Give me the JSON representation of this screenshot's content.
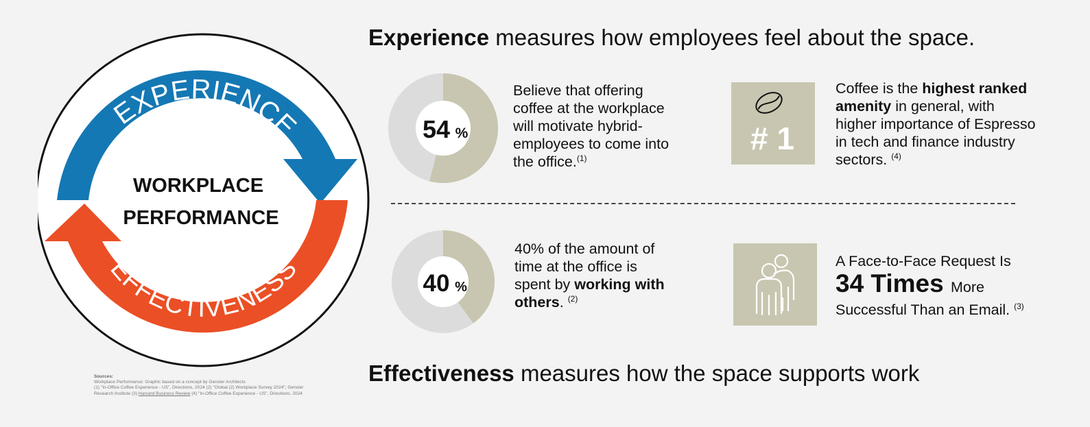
{
  "cycle": {
    "top_arc_label": "EXPERIENCE",
    "bottom_arc_label": "EFFECTIVENESS",
    "center_line1": "WORKPLACE",
    "center_line2": "PERFORMANCE",
    "colors": {
      "top_arc": "#1478b4",
      "bottom_arc": "#eb4f25",
      "ring": "#111111"
    }
  },
  "sources": {
    "heading": "Sources:",
    "line1": "Workplace Performance: Graphic based on a concept by Gensler Architects",
    "line2a": "(1) \"In-Office Coffee Experience - US\", Directions, 2024",
    "line2b": "(2) \"Global (2) Workplace Survey 2024\"; Gensler",
    "line3a": "Research Institute (3)",
    "line3_link": "Harvard Business Review",
    "line3b": "(4) \"In-Office Coffee Experience - US\", Directions, 2024"
  },
  "experience_header": {
    "bold": "Experience",
    "rest": " measures how employees feel about the space."
  },
  "effectiveness_header": {
    "bold": "Effectiveness",
    "rest": " measures how the space supports work"
  },
  "stat_coffee": {
    "percent": 54,
    "value": "54",
    "unit": "%",
    "text": "Believe that offering coffee at the workplace will motivate hybrid-employees to come into the office.",
    "lines": [
      "Believe that offering",
      "coffee at the workplace",
      "will motivate hybrid-",
      "employees to come into",
      "the office."
    ],
    "footnote": "(1)"
  },
  "stat_collab": {
    "percent": 40,
    "value": "40",
    "unit": "%",
    "line1": "40% of the amount of",
    "line2": "time at the office is",
    "line3_pre": "spent by ",
    "line3_bold": "working with",
    "line4_bold": "others",
    "line4_post": ".",
    "footnote": "(2)"
  },
  "rank_card": {
    "icon": "coffee-bean-icon",
    "rank": "# 1",
    "line1_pre": "Coffee is the ",
    "line1_bold": "highest ranked",
    "line2_bold": "amenity",
    "line2_post": " in general, with",
    "line3": "higher importance of Espresso",
    "line4": "in tech and finance industry",
    "line5": "sectors.",
    "footnote": "(4)"
  },
  "face_card": {
    "icon": "people-icon",
    "line1": "A Face-to-Face Request Is",
    "big": "34 Times",
    "big_after": "More",
    "line3": "Successful Than an Email.",
    "footnote": "(3)"
  },
  "colors": {
    "donut_filled": "#c8c6b0",
    "donut_empty": "#dcdcdc",
    "card_bg": "#c8c6b0",
    "background": "#f3f3f3"
  }
}
